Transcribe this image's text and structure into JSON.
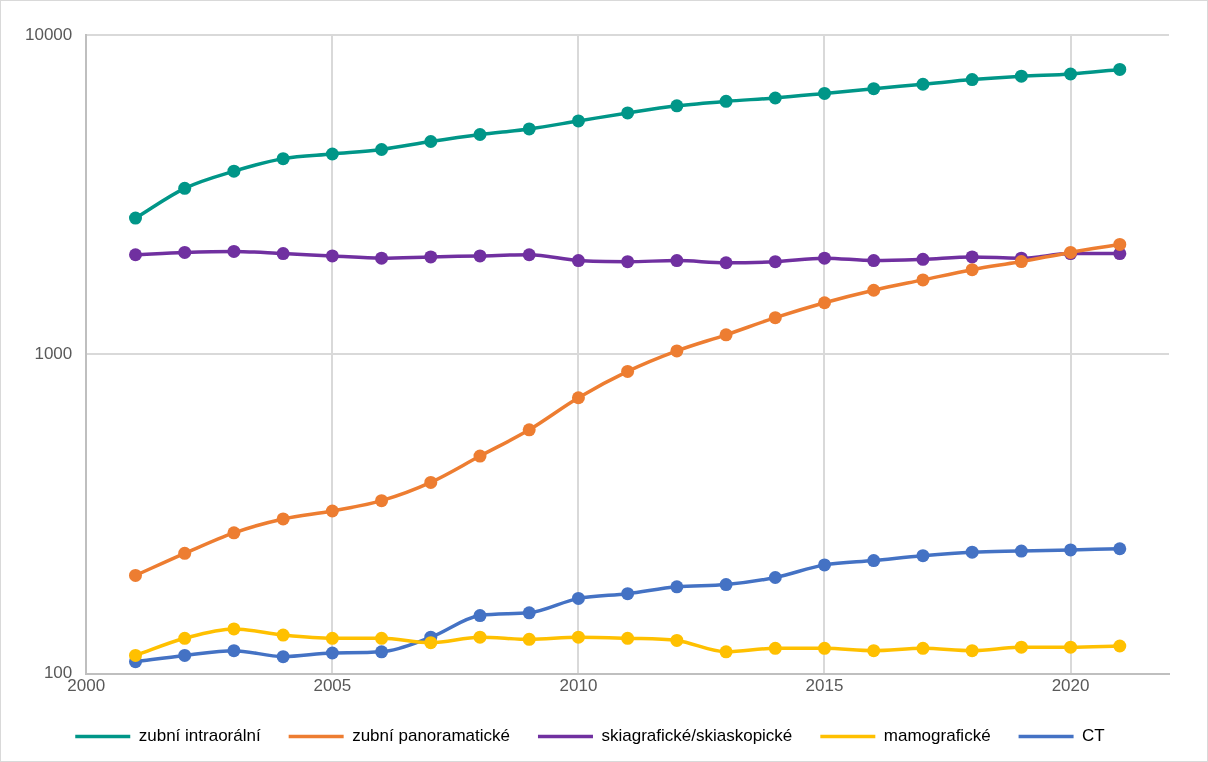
{
  "chart_data": {
    "type": "line",
    "x": [
      2001,
      2002,
      2003,
      2004,
      2005,
      2006,
      2007,
      2008,
      2009,
      2010,
      2011,
      2012,
      2013,
      2014,
      2015,
      2016,
      2017,
      2018,
      2019,
      2020,
      2021
    ],
    "series": [
      {
        "name": "zubní intraorální",
        "color": "#009688",
        "values": [
          2670,
          3310,
          3745,
          4100,
          4240,
          4380,
          4640,
          4880,
          5080,
          5380,
          5700,
          6000,
          6200,
          6350,
          6560,
          6790,
          7010,
          7250,
          7430,
          7550,
          7800
        ]
      },
      {
        "name": "zubní panoramatické",
        "color": "#ed7d31",
        "values": [
          203,
          238,
          276,
          305,
          323,
          348,
          397,
          480,
          580,
          731,
          884,
          1025,
          1151,
          1302,
          1450,
          1587,
          1710,
          1841,
          1952,
          2085,
          2208
        ]
      },
      {
        "name": "skiagrafické/skiaskopické",
        "color": "#7030a0",
        "values": [
          2050,
          2085,
          2100,
          2068,
          2033,
          2000,
          2018,
          2033,
          2050,
          1966,
          1950,
          1966,
          1935,
          1950,
          2000,
          1966,
          1984,
          2018,
          2000,
          2068,
          2068
        ]
      },
      {
        "name": "mamografické",
        "color": "#ffc000",
        "values": [
          114,
          129,
          138,
          132,
          129,
          129,
          125,
          130,
          128,
          130,
          129,
          127,
          117,
          120,
          120,
          118,
          120,
          118,
          121,
          121,
          122
        ]
      },
      {
        "name": "CT",
        "color": "#4472c4",
        "values": [
          109,
          114,
          118,
          113,
          116,
          117,
          130,
          152,
          155,
          172,
          178,
          187,
          190,
          200,
          219,
          226,
          234,
          240,
          242,
          244,
          246
        ]
      }
    ],
    "xlim": [
      2000,
      2022
    ],
    "xticks": [
      2000,
      2005,
      2010,
      2015,
      2020
    ],
    "ylim": [
      100,
      10000
    ],
    "yticks": [
      100,
      1000,
      10000
    ],
    "log": "y",
    "grid": true,
    "legend": "bottom",
    "marker": "circle",
    "line_style": "solid"
  }
}
